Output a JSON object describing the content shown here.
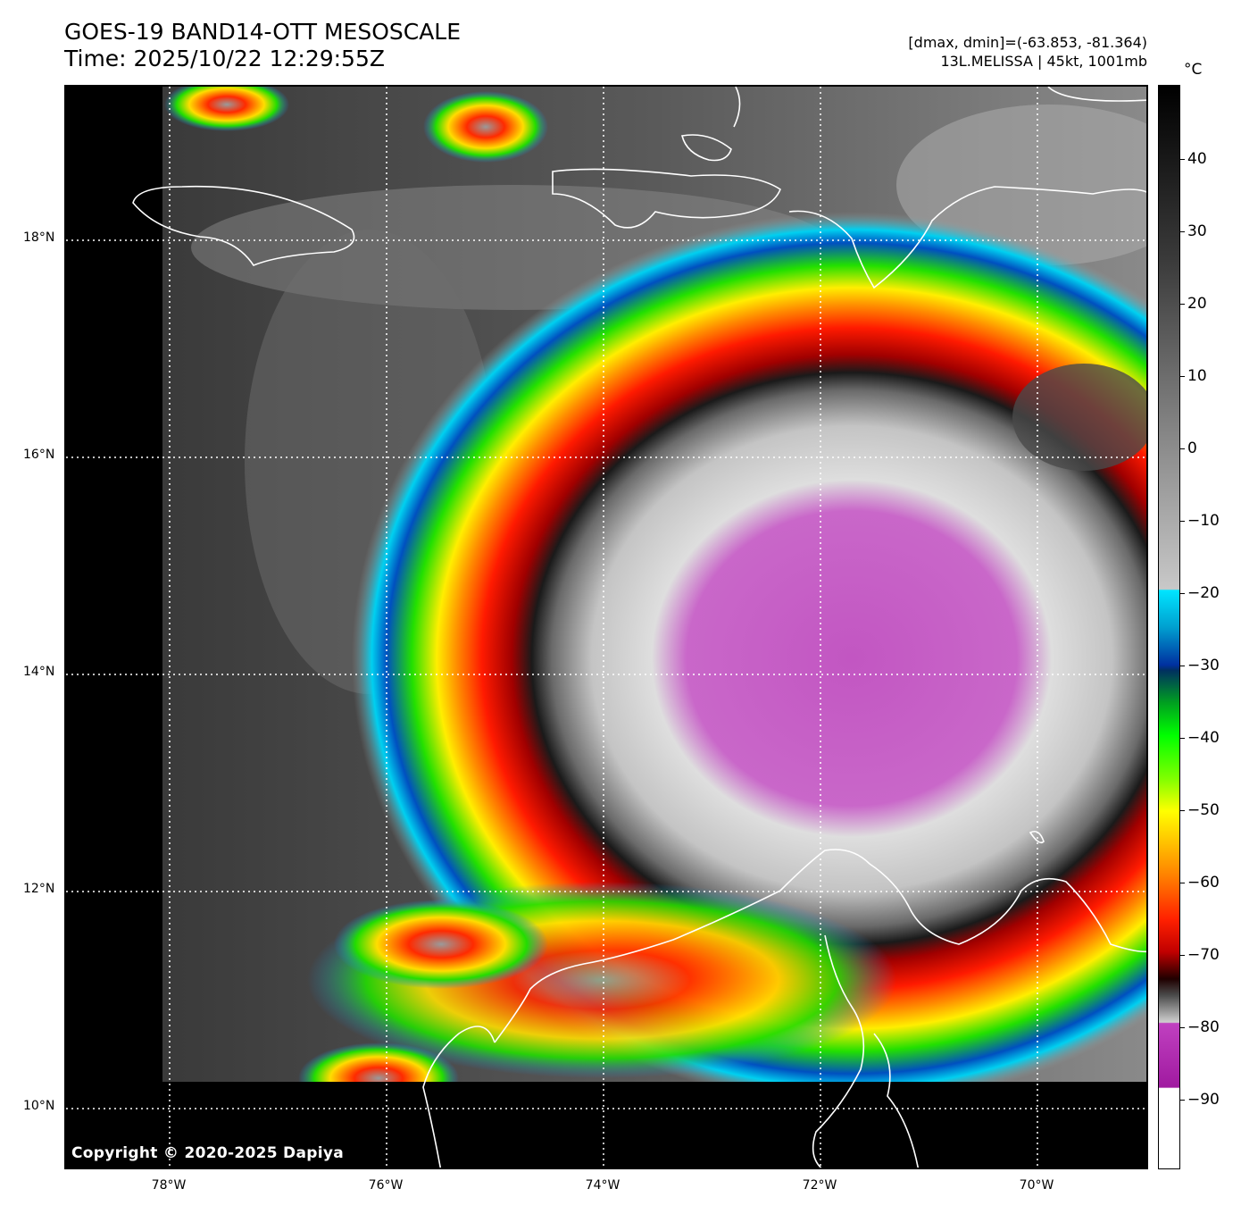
{
  "header": {
    "title_line1": "GOES-19 BAND14-OTT MESOSCALE",
    "title_line2": "Time: 2025/10/22 12:29:55Z",
    "dmax_dmin": "[dmax, dmin]=(-63.853, -81.364)",
    "storm_info": "13L.MELISSA | 45kt, 1001mb"
  },
  "map": {
    "lat_labels": [
      "18°N",
      "16°N",
      "14°N",
      "12°N",
      "10°N"
    ],
    "lon_labels": [
      "78°W",
      "76°W",
      "74°W",
      "72°W",
      "70°W"
    ],
    "copyright": "Copyright © 2020-2025 Dapiya",
    "coastline_color": "#ffffff",
    "gridline_color": "#ffffff"
  },
  "colorbar": {
    "unit": "°C",
    "labels": [
      "40",
      "30",
      "20",
      "10",
      "0",
      "−10",
      "−20",
      "−30",
      "−40",
      "−50",
      "−60",
      "−70",
      "−80",
      "−90"
    ],
    "magenta": "#c040c0",
    "cyan": "#00e5ff"
  }
}
